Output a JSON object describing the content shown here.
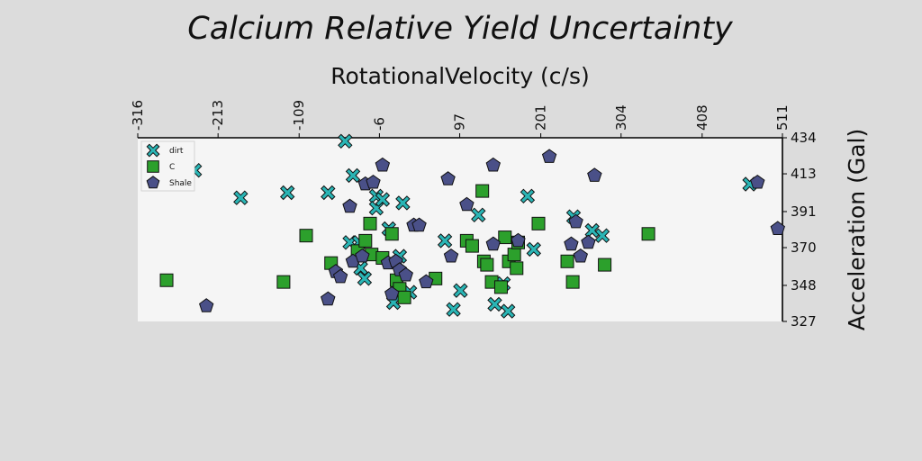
{
  "chart_data": {
    "type": "scatter",
    "title": "Calcium Relative Yield Uncertainty",
    "xlabel": "RotationalVelocity (c/s)",
    "ylabel": "Acceleration (Gal)",
    "xlim": [
      -316,
      511
    ],
    "ylim": [
      327,
      434
    ],
    "x_ticks": [
      "-316",
      "-213",
      "-109",
      "-6",
      "97",
      "201",
      "304",
      "408",
      "511"
    ],
    "y_ticks": [
      "327",
      "348",
      "370",
      "391",
      "413",
      "434"
    ],
    "x_axis_position": "top",
    "y_axis_position": "right",
    "grid": false,
    "legend": {
      "position": "top-left"
    },
    "colors": {
      "dirt": "#2ab5b5",
      "C": "#2ca02c",
      "Shale": "#4a5088",
      "background": "#dcdcdc",
      "plot_background": "#f5f5f5"
    },
    "series": [
      {
        "name": "dirt",
        "marker": "x",
        "points": [
          [
            -243,
            415
          ],
          [
            -184,
            399
          ],
          [
            -124,
            402
          ],
          [
            -72,
            402
          ],
          [
            -50,
            432
          ],
          [
            -44,
            373
          ],
          [
            -40,
            412
          ],
          [
            -32,
            373
          ],
          [
            -30,
            358
          ],
          [
            -25,
            352
          ],
          [
            -10,
            400
          ],
          [
            -10,
            393
          ],
          [
            -2,
            398
          ],
          [
            6,
            381
          ],
          [
            12,
            338
          ],
          [
            20,
            365
          ],
          [
            24,
            396
          ],
          [
            33,
            344
          ],
          [
            78,
            374
          ],
          [
            89,
            334
          ],
          [
            98,
            345
          ],
          [
            121,
            389
          ],
          [
            142,
            337
          ],
          [
            153,
            349
          ],
          [
            159,
            333
          ],
          [
            184,
            400
          ],
          [
            192,
            369
          ],
          [
            243,
            388
          ],
          [
            267,
            380
          ],
          [
            280,
            377
          ],
          [
            469,
            407
          ]
        ]
      },
      {
        "name": "C",
        "marker": "s",
        "points": [
          [
            -279,
            351
          ],
          [
            -129,
            350
          ],
          [
            -100,
            377
          ],
          [
            -68,
            361
          ],
          [
            -34,
            368
          ],
          [
            -24,
            374
          ],
          [
            -18,
            384
          ],
          [
            -16,
            366
          ],
          [
            -2,
            364
          ],
          [
            10,
            378
          ],
          [
            16,
            351
          ],
          [
            20,
            346
          ],
          [
            26,
            341
          ],
          [
            66,
            352
          ],
          [
            106,
            374
          ],
          [
            113,
            371
          ],
          [
            126,
            403
          ],
          [
            128,
            362
          ],
          [
            132,
            360
          ],
          [
            138,
            350
          ],
          [
            150,
            347
          ],
          [
            155,
            376
          ],
          [
            160,
            362
          ],
          [
            167,
            366
          ],
          [
            170,
            358
          ],
          [
            172,
            373
          ],
          [
            198,
            384
          ],
          [
            235,
            362
          ],
          [
            242,
            350
          ],
          [
            283,
            360
          ],
          [
            339,
            378
          ]
        ]
      },
      {
        "name": "Shale",
        "marker": "p",
        "points": [
          [
            -228,
            336
          ],
          [
            -72,
            340
          ],
          [
            -62,
            356
          ],
          [
            -56,
            353
          ],
          [
            -44,
            394
          ],
          [
            -40,
            362
          ],
          [
            -28,
            365
          ],
          [
            -24,
            407
          ],
          [
            -14,
            408
          ],
          [
            -2,
            418
          ],
          [
            5,
            361
          ],
          [
            10,
            343
          ],
          [
            15,
            362
          ],
          [
            20,
            357
          ],
          [
            28,
            354
          ],
          [
            38,
            383
          ],
          [
            45,
            383
          ],
          [
            54,
            350
          ],
          [
            82,
            410
          ],
          [
            86,
            365
          ],
          [
            106,
            395
          ],
          [
            140,
            372
          ],
          [
            140,
            418
          ],
          [
            172,
            374
          ],
          [
            212,
            423
          ],
          [
            240,
            372
          ],
          [
            246,
            385
          ],
          [
            262,
            373
          ],
          [
            252,
            365
          ],
          [
            270,
            412
          ],
          [
            479,
            408
          ],
          [
            505,
            381
          ]
        ]
      }
    ]
  }
}
